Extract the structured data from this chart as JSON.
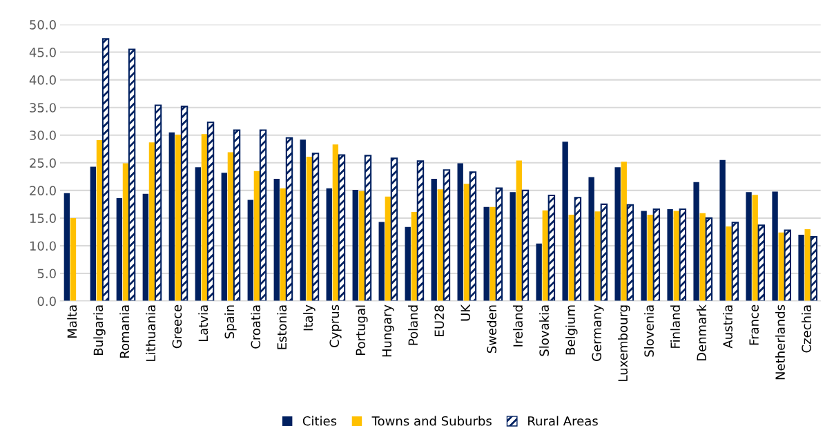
{
  "chart_data": {
    "type": "bar",
    "categories": [
      "Malta",
      "Bulgaria",
      "Romania",
      "Lithuania",
      "Greece",
      "Latvia",
      "Spain",
      "Croatia",
      "Estonia",
      "Italy",
      "Cyprus",
      "Portugal",
      "Hungary",
      "Poland",
      "EU28",
      "UK",
      "Sweden",
      "Ireland",
      "Slovakia",
      "Belgium",
      "Germany",
      "Luxembourg",
      "Slovenia",
      "Finland",
      "Denmark",
      "Austria",
      "France",
      "Netherlands",
      "Czechia"
    ],
    "series": [
      {
        "name": "Cities",
        "color": "#002060",
        "values": [
          19.5,
          24.3,
          18.6,
          19.4,
          30.5,
          24.2,
          23.2,
          18.3,
          22.1,
          29.2,
          20.4,
          20.1,
          14.3,
          13.4,
          22.1,
          24.9,
          17.0,
          19.7,
          10.4,
          28.8,
          22.4,
          24.2,
          16.3,
          16.6,
          21.5,
          25.5,
          19.7,
          19.8,
          12.0
        ]
      },
      {
        "name": "Towns and Suburbs",
        "color": "#ffc000",
        "values": [
          15.0,
          29.1,
          24.9,
          28.7,
          30.1,
          30.2,
          26.9,
          23.5,
          20.4,
          26.1,
          28.3,
          19.9,
          18.9,
          16.1,
          20.2,
          21.2,
          17.0,
          25.4,
          16.4,
          15.6,
          16.2,
          25.2,
          15.6,
          16.3,
          15.9,
          13.5,
          19.2,
          12.4,
          13.0
        ]
      },
      {
        "name": "Rural Areas",
        "color": "#002060",
        "values": [
          null,
          47.4,
          45.5,
          35.4,
          35.2,
          32.3,
          30.9,
          30.9,
          29.5,
          26.7,
          26.4,
          26.3,
          25.8,
          25.3,
          23.7,
          23.3,
          20.4,
          20.0,
          19.1,
          18.7,
          17.5,
          17.4,
          16.6,
          16.6,
          15.0,
          14.2,
          13.7,
          12.8,
          11.6
        ]
      }
    ],
    "ylim": [
      0,
      50
    ],
    "yticks": [
      {
        "value": 0,
        "label": "0.0"
      },
      {
        "value": 5,
        "label": "5.0"
      },
      {
        "value": 10,
        "label": "10.0"
      },
      {
        "value": 15,
        "label": "15.0"
      },
      {
        "value": 20,
        "label": "20.0"
      },
      {
        "value": 25,
        "label": "25.0"
      },
      {
        "value": 30,
        "label": "30.0"
      },
      {
        "value": 35,
        "label": "35.0"
      },
      {
        "value": 40,
        "label": "40.0"
      },
      {
        "value": 45,
        "label": "45.0"
      },
      {
        "value": 50,
        "label": "50.0"
      }
    ],
    "grid": "y",
    "legend": "bottom"
  }
}
